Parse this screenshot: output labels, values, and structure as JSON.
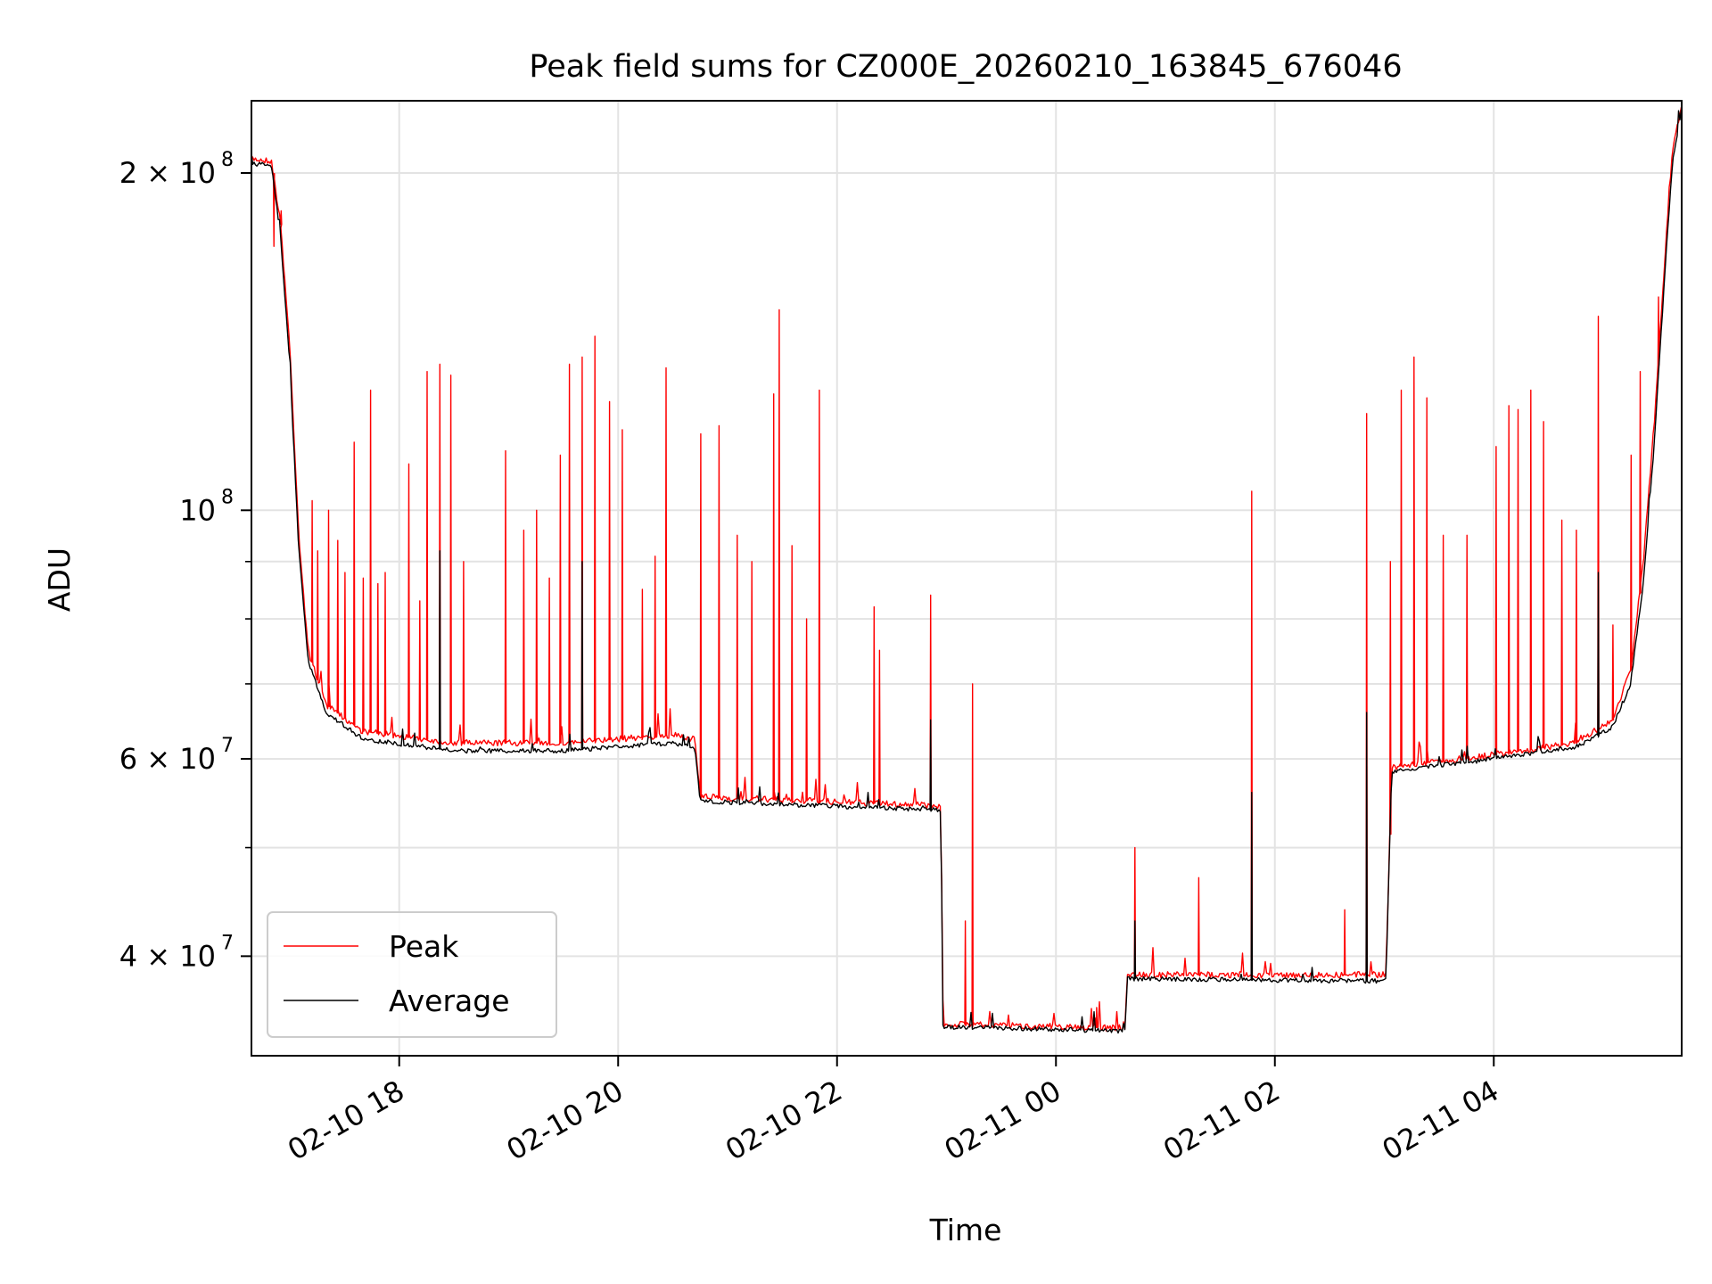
{
  "chart_data": {
    "type": "line",
    "title": "Peak field sums for CZ000E_20260210_163845_676046",
    "xlabel": "Time",
    "ylabel": "ADU",
    "yscale": "log",
    "grid": true,
    "legend_position": "lower-left",
    "xlim": [
      "2026-02-10 16:39",
      "2026-02-11 05:43"
    ],
    "ylim": [
      32600000,
      232000000
    ],
    "x_ticks": [
      {
        "t": "2026-02-10 18:00",
        "label": "02-10 18"
      },
      {
        "t": "2026-02-10 20:00",
        "label": "02-10 20"
      },
      {
        "t": "2026-02-10 22:00",
        "label": "02-10 22"
      },
      {
        "t": "2026-02-11 00:00",
        "label": "02-11 00"
      },
      {
        "t": "2026-02-11 02:00",
        "label": "02-11 02"
      },
      {
        "t": "2026-02-11 04:00",
        "label": "02-11 04"
      }
    ],
    "y_major_ticks": [
      {
        "value": 40000000,
        "base": "4 × 10",
        "exp": "7"
      },
      {
        "value": 60000000,
        "base": "6 × 10",
        "exp": "7"
      },
      {
        "value": 100000000,
        "base": "10",
        "exp": "8"
      },
      {
        "value": 200000000,
        "base": "2 × 10",
        "exp": "8"
      }
    ],
    "y_minor_ticks": [
      50000000,
      70000000,
      80000000,
      90000000
    ],
    "series": [
      {
        "name": "Peak",
        "color": "#ff0000",
        "baseline": [
          [
            "2026-02-10 16:39",
            206000000
          ],
          [
            "2026-02-10 16:50",
            205000000
          ],
          [
            "2026-02-10 16:55",
            180000000
          ],
          [
            "2026-02-10 17:00",
            140000000
          ],
          [
            "2026-02-10 17:05",
            95000000
          ],
          [
            "2026-02-10 17:10",
            75000000
          ],
          [
            "2026-02-10 17:20",
            67000000
          ],
          [
            "2026-02-10 17:40",
            63500000
          ],
          [
            "2026-02-10 18:30",
            62000000
          ],
          [
            "2026-02-10 19:30",
            62000000
          ],
          [
            "2026-02-10 20:30",
            63000000
          ],
          [
            "2026-02-10 20:42",
            62500000
          ],
          [
            "2026-02-10 20:45",
            55500000
          ],
          [
            "2026-02-10 22:55",
            54500000
          ],
          [
            "2026-02-10 22:57",
            54000000
          ],
          [
            "2026-02-10 22:58",
            34800000
          ],
          [
            "2026-02-11 00:38",
            34500000
          ],
          [
            "2026-02-11 00:39",
            38500000
          ],
          [
            "2026-02-11 03:00",
            38500000
          ],
          [
            "2026-02-11 03:01",
            39000000
          ],
          [
            "2026-02-11 03:04",
            59000000
          ],
          [
            "2026-02-11 04:00",
            60500000
          ],
          [
            "2026-02-11 04:45",
            62000000
          ],
          [
            "2026-02-11 05:05",
            65000000
          ],
          [
            "2026-02-11 05:15",
            72000000
          ],
          [
            "2026-02-11 05:22",
            90000000
          ],
          [
            "2026-02-11 05:28",
            120000000
          ],
          [
            "2026-02-11 05:34",
            170000000
          ],
          [
            "2026-02-11 05:38",
            210000000
          ],
          [
            "2026-02-11 05:43",
            230000000
          ]
        ],
        "spikes": [
          [
            "2026-02-10 16:51",
            172000000
          ],
          [
            "2026-02-10 16:55",
            185000000
          ],
          [
            "2026-02-10 17:12",
            102000000
          ],
          [
            "2026-02-10 17:15",
            92000000
          ],
          [
            "2026-02-10 17:21",
            100000000
          ],
          [
            "2026-02-10 17:26",
            94000000
          ],
          [
            "2026-02-10 17:30",
            88000000
          ],
          [
            "2026-02-10 17:35",
            115000000
          ],
          [
            "2026-02-10 17:40",
            87000000
          ],
          [
            "2026-02-10 17:44",
            128000000
          ],
          [
            "2026-02-10 17:48",
            86000000
          ],
          [
            "2026-02-10 17:52",
            88000000
          ],
          [
            "2026-02-10 18:05",
            110000000
          ],
          [
            "2026-02-10 18:11",
            83000000
          ],
          [
            "2026-02-10 18:15",
            133000000
          ],
          [
            "2026-02-10 18:22",
            135000000
          ],
          [
            "2026-02-10 18:28",
            132000000
          ],
          [
            "2026-02-10 18:35",
            90000000
          ],
          [
            "2026-02-10 18:58",
            113000000
          ],
          [
            "2026-02-10 19:08",
            96000000
          ],
          [
            "2026-02-10 19:15",
            100000000
          ],
          [
            "2026-02-10 19:22",
            87000000
          ],
          [
            "2026-02-10 19:28",
            112000000
          ],
          [
            "2026-02-10 19:33",
            135000000
          ],
          [
            "2026-02-10 19:40",
            137000000
          ],
          [
            "2026-02-10 19:47",
            143000000
          ],
          [
            "2026-02-10 19:55",
            125000000
          ],
          [
            "2026-02-10 20:02",
            118000000
          ],
          [
            "2026-02-10 20:13",
            85000000
          ],
          [
            "2026-02-10 20:20",
            91000000
          ],
          [
            "2026-02-10 20:26",
            134000000
          ],
          [
            "2026-02-10 20:45",
            117000000
          ],
          [
            "2026-02-10 20:55",
            119000000
          ],
          [
            "2026-02-10 21:05",
            95000000
          ],
          [
            "2026-02-10 21:13",
            90000000
          ],
          [
            "2026-02-10 21:25",
            127000000
          ],
          [
            "2026-02-10 21:28",
            151000000
          ],
          [
            "2026-02-10 21:35",
            93000000
          ],
          [
            "2026-02-10 21:43",
            80000000
          ],
          [
            "2026-02-10 21:50",
            128000000
          ],
          [
            "2026-02-10 22:20",
            82000000
          ],
          [
            "2026-02-10 22:23",
            75000000
          ],
          [
            "2026-02-10 22:51",
            84000000
          ],
          [
            "2026-02-10 23:10",
            43000000
          ],
          [
            "2026-02-10 23:14",
            70000000
          ],
          [
            "2026-02-11 00:22",
            36000000
          ],
          [
            "2026-02-11 00:43",
            50000000
          ],
          [
            "2026-02-11 01:18",
            47000000
          ],
          [
            "2026-02-11 01:47",
            104000000
          ],
          [
            "2026-02-11 02:38",
            44000000
          ],
          [
            "2026-02-11 02:50",
            122000000
          ],
          [
            "2026-02-11 03:03",
            90000000
          ],
          [
            "2026-02-11 03:09",
            128000000
          ],
          [
            "2026-02-11 03:16",
            137000000
          ],
          [
            "2026-02-11 03:23",
            126000000
          ],
          [
            "2026-02-11 03:32",
            95000000
          ],
          [
            "2026-02-11 03:45",
            95000000
          ],
          [
            "2026-02-11 04:01",
            114000000
          ],
          [
            "2026-02-11 04:08",
            124000000
          ],
          [
            "2026-02-11 04:13",
            123000000
          ],
          [
            "2026-02-11 04:20",
            128000000
          ],
          [
            "2026-02-11 04:27",
            120000000
          ],
          [
            "2026-02-11 04:37",
            98000000
          ],
          [
            "2026-02-11 04:45",
            96000000
          ],
          [
            "2026-02-11 04:57",
            149000000
          ],
          [
            "2026-02-11 05:05",
            79000000
          ],
          [
            "2026-02-11 05:15",
            112000000
          ],
          [
            "2026-02-11 05:20",
            133000000
          ],
          [
            "2026-02-11 05:30",
            155000000
          ]
        ]
      },
      {
        "name": "Average",
        "color": "#000000",
        "baseline": [
          [
            "2026-02-10 16:39",
            204000000
          ],
          [
            "2026-02-10 16:50",
            203000000
          ],
          [
            "2026-02-10 16:55",
            175000000
          ],
          [
            "2026-02-10 17:00",
            135000000
          ],
          [
            "2026-02-10 17:05",
            92000000
          ],
          [
            "2026-02-10 17:10",
            73500000
          ],
          [
            "2026-02-10 17:20",
            66000000
          ],
          [
            "2026-02-10 17:40",
            62500000
          ],
          [
            "2026-02-10 18:30",
            61000000
          ],
          [
            "2026-02-10 19:30",
            61000000
          ],
          [
            "2026-02-10 20:30",
            62000000
          ],
          [
            "2026-02-10 20:42",
            61500000
          ],
          [
            "2026-02-10 20:45",
            55000000
          ],
          [
            "2026-02-10 22:55",
            54000000
          ],
          [
            "2026-02-10 22:57",
            53500000
          ],
          [
            "2026-02-10 22:58",
            34600000
          ],
          [
            "2026-02-11 00:38",
            34300000
          ],
          [
            "2026-02-11 00:39",
            38200000
          ],
          [
            "2026-02-11 03:00",
            38000000
          ],
          [
            "2026-02-11 03:01",
            38500000
          ],
          [
            "2026-02-11 03:04",
            58500000
          ],
          [
            "2026-02-11 04:00",
            60000000
          ],
          [
            "2026-02-11 04:45",
            61500000
          ],
          [
            "2026-02-11 05:05",
            64000000
          ],
          [
            "2026-02-11 05:15",
            70000000
          ],
          [
            "2026-02-11 05:22",
            86000000
          ],
          [
            "2026-02-11 05:28",
            115000000
          ],
          [
            "2026-02-11 05:34",
            165000000
          ],
          [
            "2026-02-11 05:38",
            205000000
          ],
          [
            "2026-02-11 05:43",
            228000000
          ]
        ],
        "spikes": [
          [
            "2026-02-10 18:22",
            92000000
          ],
          [
            "2026-02-10 19:40",
            90000000
          ],
          [
            "2026-02-10 22:51",
            65000000
          ],
          [
            "2026-02-11 00:43",
            43000000
          ],
          [
            "2026-02-11 01:47",
            56000000
          ],
          [
            "2026-02-11 02:50",
            66000000
          ],
          [
            "2026-02-11 04:57",
            88000000
          ]
        ]
      }
    ]
  }
}
